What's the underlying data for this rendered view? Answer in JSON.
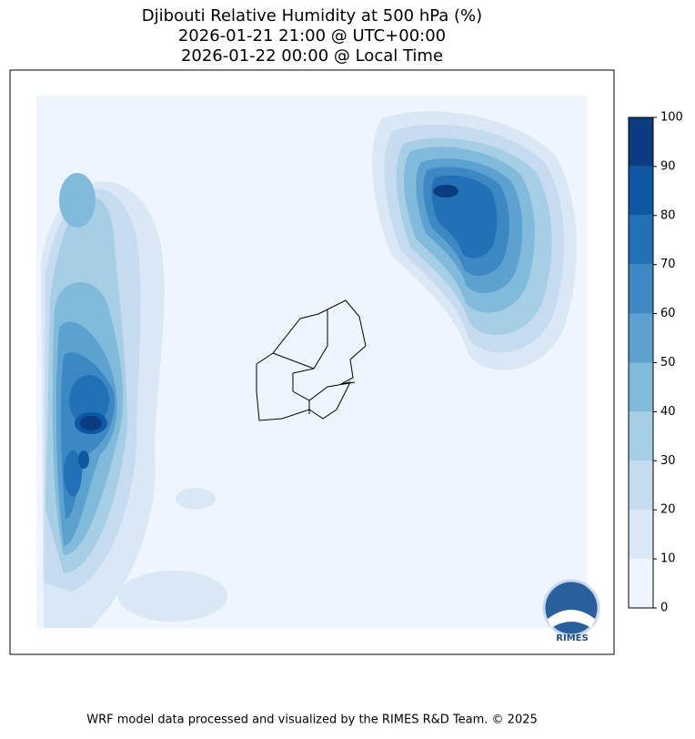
{
  "title": [
    "Djibouti Relative Humidity at 500 hPa (%)",
    "2026-01-21 21:00 @ UTC+00:00",
    "2026-01-22 00:00 @ Local Time"
  ],
  "colorbar": {
    "ticks": [
      0,
      10,
      20,
      30,
      40,
      50,
      60,
      70,
      80,
      90,
      100
    ],
    "colors": [
      "#eef5fc",
      "#dae8f5",
      "#c6dbef",
      "#a6cee4",
      "#82badb",
      "#5ba2d0",
      "#3d88c3",
      "#2270b5",
      "#0e58a2",
      "#0a3c7f"
    ]
  },
  "logo": {
    "label": "RIMES"
  },
  "footer": "WRF model data processed and visualized by the RIMES R&D Team. © 2025"
}
